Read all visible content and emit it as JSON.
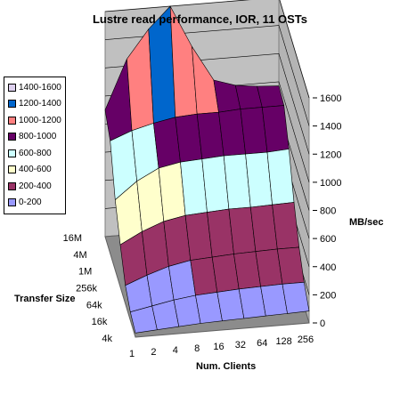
{
  "chart_data": {
    "type": "surface",
    "title": "Lustre read performance, IOR, 11 OSTs",
    "xlabel": "Num. Clients",
    "ylabel": "Transfer Size",
    "zlabel": "MB/sec",
    "x_categories": [
      "1",
      "2",
      "4",
      "8",
      "16",
      "32",
      "64",
      "128",
      "256"
    ],
    "y_categories": [
      "4k",
      "16k",
      "64k",
      "256k",
      "1M",
      "4M",
      "16M"
    ],
    "zlim": [
      0,
      1600
    ],
    "z_ticks": [
      "0",
      "200",
      "400",
      "600",
      "800",
      "1000",
      "1200",
      "1400",
      "1600"
    ],
    "legend": [
      {
        "label": "1400-1600",
        "color": "#ddd0ee"
      },
      {
        "label": "1200-1400",
        "color": "#0066cc"
      },
      {
        "label": "1000-1200",
        "color": "#ff8080"
      },
      {
        "label": "800-1000",
        "color": "#660066"
      },
      {
        "label": "600-800",
        "color": "#ccffff"
      },
      {
        "label": "400-600",
        "color": "#ffffcc"
      },
      {
        "label": "200-400",
        "color": "#993366"
      },
      {
        "label": "0-200",
        "color": "#9999ff"
      }
    ],
    "series": [
      {
        "transfer_size": "4k",
        "values": [
          30,
          40,
          50,
          60,
          65,
          70,
          75,
          80,
          85
        ]
      },
      {
        "transfer_size": "16k",
        "values": [
          60,
          90,
          120,
          140,
          150,
          160,
          165,
          170,
          170
        ]
      },
      {
        "transfer_size": "64k",
        "values": [
          130,
          190,
          240,
          270,
          280,
          290,
          295,
          300,
          300
        ]
      },
      {
        "transfer_size": "256k",
        "values": [
          300,
          380,
          440,
          470,
          480,
          490,
          490,
          495,
          500
        ]
      },
      {
        "transfer_size": "1M",
        "values": [
          500,
          620,
          700,
          730,
          740,
          750,
          750,
          750,
          760
        ]
      },
      {
        "transfer_size": "4M",
        "values": [
          800,
          860,
          900,
          930,
          940,
          940,
          950,
          950,
          950
        ]
      },
      {
        "transfer_size": "16M",
        "values": [
          900,
          1250,
          1450,
          1600,
          1300,
          1050,
          1000,
          980,
          970
        ]
      }
    ]
  }
}
